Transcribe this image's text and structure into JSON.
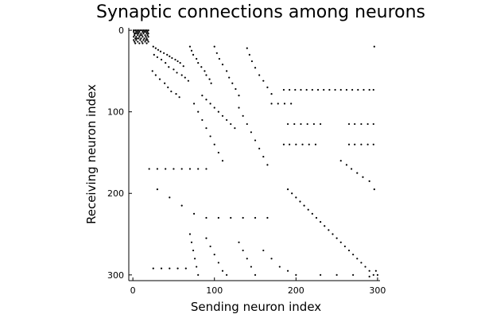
{
  "chart_data": {
    "type": "scatter",
    "title": "Synaptic connections among neurons",
    "xlabel": "Sending neuron index",
    "ylabel": "Receiving neuron index",
    "xlim": [
      -5,
      303
    ],
    "ylim": [
      -3,
      307
    ],
    "y_inverted": true,
    "aspect_equal": true,
    "grid": false,
    "legend": "none",
    "xticks": [
      0,
      100,
      200,
      300
    ],
    "yticks": [
      0,
      100,
      200,
      300
    ],
    "marker_color": "#000000",
    "series": [
      {
        "points": [
          [
            1,
            0
          ],
          [
            3,
            0
          ],
          [
            5,
            0
          ],
          [
            7,
            0
          ],
          [
            9,
            0
          ],
          [
            11,
            0
          ],
          [
            13,
            0
          ],
          [
            15,
            0
          ],
          [
            17,
            0
          ],
          [
            19,
            0
          ],
          [
            1,
            2
          ],
          [
            4,
            2
          ],
          [
            6,
            2
          ],
          [
            8,
            2
          ],
          [
            12,
            2
          ],
          [
            14,
            2
          ],
          [
            16,
            2
          ],
          [
            18,
            2
          ],
          [
            2,
            4
          ],
          [
            3,
            4
          ],
          [
            5,
            4
          ],
          [
            7,
            4
          ],
          [
            10,
            4
          ],
          [
            13,
            4
          ],
          [
            17,
            4
          ],
          [
            19,
            4
          ],
          [
            2,
            6
          ],
          [
            6,
            6
          ],
          [
            9,
            6
          ],
          [
            11,
            6
          ],
          [
            15,
            6
          ],
          [
            18,
            6
          ],
          [
            1,
            8
          ],
          [
            4,
            8
          ],
          [
            8,
            8
          ],
          [
            12,
            8
          ],
          [
            16,
            8
          ],
          [
            19,
            8
          ],
          [
            3,
            10
          ],
          [
            5,
            10
          ],
          [
            7,
            10
          ],
          [
            10,
            10
          ],
          [
            14,
            10
          ],
          [
            17,
            10
          ],
          [
            1,
            12
          ],
          [
            4,
            12
          ],
          [
            9,
            12
          ],
          [
            13,
            12
          ],
          [
            16,
            12
          ],
          [
            18,
            12
          ],
          [
            2,
            14
          ],
          [
            6,
            14
          ],
          [
            11,
            14
          ],
          [
            15,
            14
          ],
          [
            19,
            14
          ],
          [
            3,
            16
          ],
          [
            8,
            16
          ],
          [
            12,
            16
          ],
          [
            17,
            16
          ],
          [
            25,
            20
          ],
          [
            28,
            22
          ],
          [
            31,
            24
          ],
          [
            34,
            26
          ],
          [
            38,
            28
          ],
          [
            42,
            30
          ],
          [
            45,
            32
          ],
          [
            48,
            34
          ],
          [
            52,
            36
          ],
          [
            55,
            38
          ],
          [
            58,
            40
          ],
          [
            62,
            44
          ],
          [
            26,
            30
          ],
          [
            30,
            33
          ],
          [
            35,
            36
          ],
          [
            40,
            40
          ],
          [
            44,
            45
          ],
          [
            50,
            48
          ],
          [
            54,
            52
          ],
          [
            60,
            55
          ],
          [
            64,
            58
          ],
          [
            68,
            62
          ],
          [
            24,
            50
          ],
          [
            28,
            55
          ],
          [
            33,
            60
          ],
          [
            39,
            65
          ],
          [
            43,
            70
          ],
          [
            47,
            75
          ],
          [
            53,
            78
          ],
          [
            57,
            82
          ],
          [
            70,
            20
          ],
          [
            72,
            25
          ],
          [
            74,
            30
          ],
          [
            78,
            35
          ],
          [
            80,
            40
          ],
          [
            84,
            45
          ],
          [
            88,
            50
          ],
          [
            90,
            55
          ],
          [
            94,
            60
          ],
          [
            96,
            65
          ],
          [
            100,
            20
          ],
          [
            103,
            28
          ],
          [
            106,
            35
          ],
          [
            110,
            42
          ],
          [
            115,
            50
          ],
          [
            118,
            58
          ],
          [
            122,
            65
          ],
          [
            126,
            72
          ],
          [
            130,
            80
          ],
          [
            140,
            22
          ],
          [
            143,
            30
          ],
          [
            146,
            38
          ],
          [
            150,
            46
          ],
          [
            155,
            55
          ],
          [
            160,
            62
          ],
          [
            165,
            70
          ],
          [
            170,
            78
          ],
          [
            85,
            80
          ],
          [
            90,
            85
          ],
          [
            95,
            90
          ],
          [
            100,
            95
          ],
          [
            105,
            100
          ],
          [
            110,
            105
          ],
          [
            115,
            110
          ],
          [
            120,
            115
          ],
          [
            125,
            120
          ],
          [
            75,
            90
          ],
          [
            80,
            100
          ],
          [
            85,
            110
          ],
          [
            90,
            120
          ],
          [
            95,
            130
          ],
          [
            100,
            140
          ],
          [
            105,
            150
          ],
          [
            110,
            160
          ],
          [
            130,
            95
          ],
          [
            135,
            105
          ],
          [
            140,
            115
          ],
          [
            145,
            125
          ],
          [
            150,
            135
          ],
          [
            155,
            145
          ],
          [
            160,
            155
          ],
          [
            165,
            165
          ],
          [
            185,
            73
          ],
          [
            192,
            73
          ],
          [
            199,
            73
          ],
          [
            206,
            73
          ],
          [
            213,
            73
          ],
          [
            220,
            73
          ],
          [
            227,
            73
          ],
          [
            234,
            73
          ],
          [
            241,
            73
          ],
          [
            248,
            73
          ],
          [
            255,
            73
          ],
          [
            262,
            73
          ],
          [
            269,
            73
          ],
          [
            276,
            73
          ],
          [
            283,
            73
          ],
          [
            290,
            73
          ],
          [
            295,
            73
          ],
          [
            170,
            90
          ],
          [
            178,
            90
          ],
          [
            186,
            90
          ],
          [
            194,
            90
          ],
          [
            190,
            115
          ],
          [
            198,
            115
          ],
          [
            206,
            115
          ],
          [
            214,
            115
          ],
          [
            222,
            115
          ],
          [
            230,
            115
          ],
          [
            185,
            140
          ],
          [
            192,
            140
          ],
          [
            200,
            140
          ],
          [
            208,
            140
          ],
          [
            216,
            140
          ],
          [
            224,
            140
          ],
          [
            265,
            115
          ],
          [
            272,
            115
          ],
          [
            280,
            115
          ],
          [
            288,
            115
          ],
          [
            295,
            115
          ],
          [
            265,
            140
          ],
          [
            272,
            140
          ],
          [
            280,
            140
          ],
          [
            288,
            140
          ],
          [
            295,
            140
          ],
          [
            255,
            160
          ],
          [
            262,
            165
          ],
          [
            268,
            170
          ],
          [
            275,
            175
          ],
          [
            282,
            180
          ],
          [
            290,
            185
          ],
          [
            20,
            170
          ],
          [
            30,
            170
          ],
          [
            40,
            170
          ],
          [
            50,
            170
          ],
          [
            60,
            170
          ],
          [
            70,
            170
          ],
          [
            80,
            170
          ],
          [
            90,
            170
          ],
          [
            30,
            195
          ],
          [
            45,
            205
          ],
          [
            60,
            215
          ],
          [
            75,
            225
          ],
          [
            90,
            230
          ],
          [
            105,
            230
          ],
          [
            120,
            230
          ],
          [
            135,
            230
          ],
          [
            150,
            230
          ],
          [
            165,
            230
          ],
          [
            190,
            195
          ],
          [
            195,
            200
          ],
          [
            200,
            205
          ],
          [
            205,
            210
          ],
          [
            210,
            215
          ],
          [
            215,
            220
          ],
          [
            220,
            225
          ],
          [
            225,
            230
          ],
          [
            230,
            235
          ],
          [
            235,
            240
          ],
          [
            240,
            245
          ],
          [
            245,
            250
          ],
          [
            250,
            255
          ],
          [
            255,
            260
          ],
          [
            260,
            265
          ],
          [
            265,
            270
          ],
          [
            270,
            275
          ],
          [
            275,
            280
          ],
          [
            280,
            285
          ],
          [
            285,
            290
          ],
          [
            290,
            295
          ],
          [
            295,
            300
          ],
          [
            70,
            250
          ],
          [
            72,
            260
          ],
          [
            74,
            270
          ],
          [
            76,
            280
          ],
          [
            78,
            290
          ],
          [
            80,
            300
          ],
          [
            90,
            255
          ],
          [
            95,
            265
          ],
          [
            100,
            275
          ],
          [
            105,
            285
          ],
          [
            110,
            295
          ],
          [
            115,
            300
          ],
          [
            130,
            260
          ],
          [
            135,
            270
          ],
          [
            140,
            280
          ],
          [
            145,
            290
          ],
          [
            150,
            300
          ],
          [
            160,
            270
          ],
          [
            170,
            280
          ],
          [
            180,
            290
          ],
          [
            190,
            295
          ],
          [
            200,
            300
          ],
          [
            25,
            292
          ],
          [
            35,
            292
          ],
          [
            45,
            292
          ],
          [
            55,
            292
          ],
          [
            65,
            292
          ],
          [
            230,
            300
          ],
          [
            250,
            300
          ],
          [
            270,
            300
          ],
          [
            290,
            302
          ],
          [
            298,
            295
          ],
          [
            296,
            20
          ],
          [
            300,
            300
          ],
          [
            296,
            195
          ]
        ]
      }
    ]
  }
}
